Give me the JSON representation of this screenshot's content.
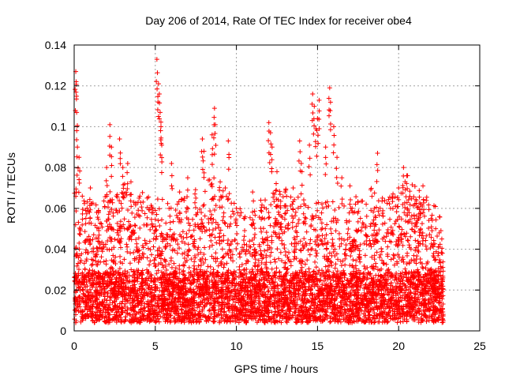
{
  "chart_data": {
    "type": "scatter",
    "title": "Day 206 of 2014, Rate Of TEC Index for receiver obe4",
    "xlabel": "GPS time / hours",
    "ylabel": "ROTI / TECUs",
    "xlim": [
      0,
      25
    ],
    "ylim": [
      0,
      0.14
    ],
    "x_ticks": [
      "0",
      "5",
      "10",
      "15",
      "20",
      "25"
    ],
    "y_ticks": [
      "0",
      "0.02",
      "0.04",
      "0.06",
      "0.08",
      "0.1",
      "0.12",
      "0.14"
    ],
    "grid": true,
    "marker": "plus",
    "color": "#ff0000",
    "x_data_range": [
      0,
      22.75
    ],
    "series": [
      {
        "values": [
          [
            0.1,
            0.127
          ],
          [
            0.12,
            0.122
          ],
          [
            0.15,
            0.107
          ],
          [
            0.2,
            0.09
          ],
          [
            0.3,
            0.085
          ],
          [
            0.5,
            0.066
          ],
          [
            0.7,
            0.059
          ],
          [
            1.0,
            0.07
          ],
          [
            1.5,
            0.059
          ],
          [
            2.0,
            0.08
          ],
          [
            2.2,
            0.101
          ],
          [
            2.3,
            0.09
          ],
          [
            2.8,
            0.094
          ],
          [
            3.0,
            0.08
          ],
          [
            3.3,
            0.082
          ],
          [
            3.5,
            0.073
          ],
          [
            4.0,
            0.065
          ],
          [
            4.5,
            0.065
          ],
          [
            5.0,
            0.059
          ],
          [
            5.1,
            0.133
          ],
          [
            5.2,
            0.121
          ],
          [
            5.25,
            0.116
          ],
          [
            5.3,
            0.107
          ],
          [
            5.35,
            0.1
          ],
          [
            5.4,
            0.091
          ],
          [
            6.0,
            0.082
          ],
          [
            6.5,
            0.068
          ],
          [
            7.0,
            0.075
          ],
          [
            7.5,
            0.065
          ],
          [
            7.9,
            0.094
          ],
          [
            8.0,
            0.088
          ],
          [
            8.5,
            0.096
          ],
          [
            8.65,
            0.109
          ],
          [
            8.7,
            0.101
          ],
          [
            9.0,
            0.073
          ],
          [
            9.5,
            0.093
          ],
          [
            10.0,
            0.06
          ],
          [
            10.5,
            0.055
          ],
          [
            11.0,
            0.068
          ],
          [
            11.5,
            0.064
          ],
          [
            12.0,
            0.102
          ],
          [
            12.1,
            0.097
          ],
          [
            12.2,
            0.09
          ],
          [
            12.5,
            0.078
          ],
          [
            13.0,
            0.068
          ],
          [
            13.5,
            0.07
          ],
          [
            13.9,
            0.093
          ],
          [
            14.0,
            0.082
          ],
          [
            14.5,
            0.091
          ],
          [
            14.7,
            0.116
          ],
          [
            14.8,
            0.11
          ],
          [
            14.9,
            0.099
          ],
          [
            15.0,
            0.104
          ],
          [
            15.1,
            0.113
          ],
          [
            15.5,
            0.09
          ],
          [
            15.75,
            0.119
          ],
          [
            15.8,
            0.112
          ],
          [
            16.0,
            0.1
          ],
          [
            16.2,
            0.085
          ],
          [
            16.5,
            0.075
          ],
          [
            17.0,
            0.071
          ],
          [
            17.5,
            0.063
          ],
          [
            18.0,
            0.062
          ],
          [
            18.5,
            0.06
          ],
          [
            18.7,
            0.087
          ],
          [
            19.0,
            0.065
          ],
          [
            19.5,
            0.06
          ],
          [
            20.0,
            0.07
          ],
          [
            20.3,
            0.08
          ],
          [
            20.5,
            0.076
          ],
          [
            21.0,
            0.062
          ],
          [
            21.5,
            0.071
          ],
          [
            22.0,
            0.055
          ],
          [
            22.5,
            0.048
          ],
          [
            22.7,
            0.038
          ]
        ]
      }
    ]
  }
}
